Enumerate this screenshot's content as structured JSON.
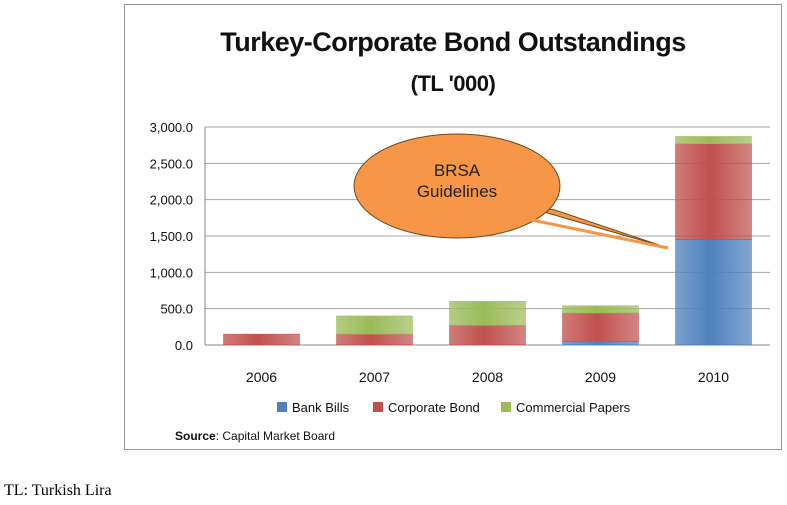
{
  "chart_data": {
    "type": "bar",
    "stacked": true,
    "title": "Turkey-Corporate Bond Outstandings",
    "subtitle": "(TL '000)",
    "categories": [
      "2006",
      "2007",
      "2008",
      "2009",
      "2010"
    ],
    "series": [
      {
        "name": "Bank Bills",
        "color": "#4f81bd",
        "values": [
          0,
          0,
          0,
          50,
          1450
        ]
      },
      {
        "name": "Corporate Bond",
        "color": "#c0504d",
        "values": [
          150,
          150,
          270,
          390,
          1320
        ]
      },
      {
        "name": "Commercial Papers",
        "color": "#9bbb59",
        "values": [
          0,
          250,
          330,
          100,
          100
        ]
      }
    ],
    "y_ticks": [
      "0.0",
      "500.0",
      "1,000.0",
      "1,500.0",
      "2,000.0",
      "2,500.0",
      "3,000.0"
    ],
    "ylim": [
      0,
      3000
    ],
    "grid": true,
    "legend": "bottom",
    "annotation": "BRSA Guidelines",
    "source_label": "Source",
    "source_text": ": Capital Market Board"
  },
  "footnote": "TL: Turkish Lira"
}
